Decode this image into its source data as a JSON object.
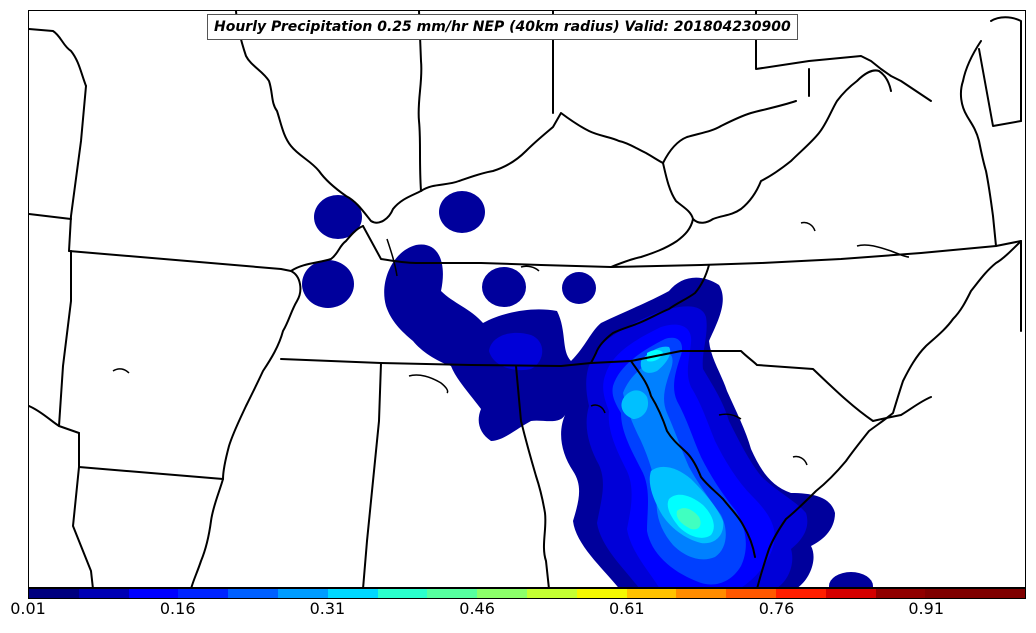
{
  "title": "Hourly Precipitation 0.25 mm/hr NEP (40km radius) Valid: 201804230900",
  "colorbar": {
    "colors": [
      "#00007f",
      "#0000b4",
      "#0000ff",
      "#0024ff",
      "#0060ff",
      "#009cff",
      "#00d8ff",
      "#2affcc",
      "#56ff9f",
      "#8cff6a",
      "#c4ff33",
      "#f4f802",
      "#ffc200",
      "#ff8c00",
      "#ff5800",
      "#ff1e00",
      "#d40000",
      "#900000",
      "#7f0000",
      "#7f0000"
    ],
    "ticks": [
      {
        "label": "0.01",
        "value": 0.01
      },
      {
        "label": "0.16",
        "value": 0.16
      },
      {
        "label": "0.31",
        "value": 0.31
      },
      {
        "label": "0.46",
        "value": 0.46
      },
      {
        "label": "0.61",
        "value": 0.61
      },
      {
        "label": "0.76",
        "value": 0.76
      },
      {
        "label": "0.91",
        "value": 0.91
      }
    ],
    "vmin": 0.01,
    "vmax": 1.01
  },
  "map": {
    "region": "Southeastern United States",
    "precip_field_colors": [
      "#00009c",
      "#0000d8",
      "#0000ff",
      "#0040ff",
      "#0080ff",
      "#00c0ff",
      "#00ffff",
      "#40ffc0"
    ]
  }
}
